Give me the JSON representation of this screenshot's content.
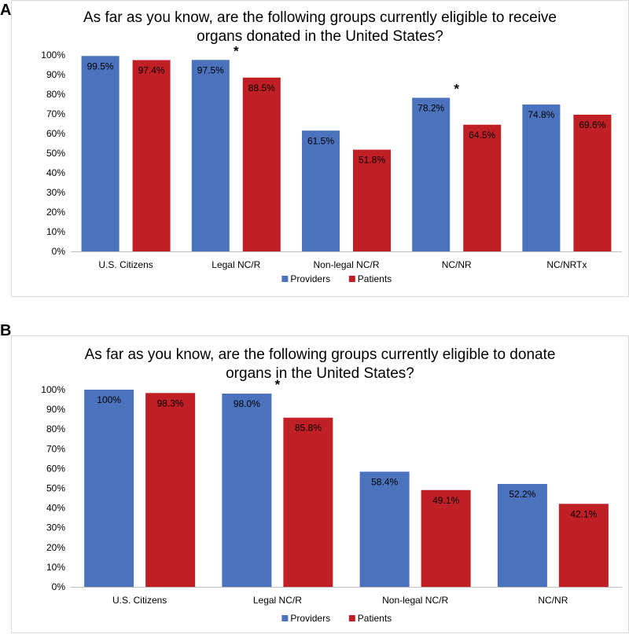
{
  "panels": {
    "a": {
      "letter": "A"
    },
    "b": {
      "letter": "B"
    }
  },
  "colors": {
    "providers": "#4a72bd",
    "patients": "#c11f26",
    "axis": "#bfbfbf"
  },
  "chart_data": [
    {
      "type": "bar",
      "title": "As far as you know, are the following groups currently eligible to receive\norgans donated in the United States?",
      "categories": [
        "U.S. Citizens",
        "Legal NC/R",
        "Non-legal NC/R",
        "NC/NR",
        "NC/NRTx"
      ],
      "series": [
        {
          "name": "Providers",
          "values": [
            99.5,
            97.5,
            61.5,
            78.2,
            74.8
          ],
          "labels": [
            "99.5%",
            "97.5%",
            "61.5%",
            "78.2%",
            "74.8%"
          ]
        },
        {
          "name": "Patients",
          "values": [
            97.4,
            88.5,
            51.8,
            64.5,
            69.6
          ],
          "labels": [
            "97.4%",
            "88.5%",
            "51.8%",
            "64.5%",
            "69.6%"
          ]
        }
      ],
      "yticks": [
        "0%",
        "10%",
        "20%",
        "30%",
        "40%",
        "50%",
        "60%",
        "70%",
        "80%",
        "90%",
        "100%"
      ],
      "ylim": [
        0,
        100
      ],
      "significance": [
        {
          "category_index": 1,
          "marker": "*"
        },
        {
          "category_index": 3,
          "marker": "*"
        }
      ],
      "legend": "bottom",
      "xlabel": "",
      "ylabel": ""
    },
    {
      "type": "bar",
      "title": "As far as you know, are the following groups currently eligible to donate\norgans in the United States?",
      "categories": [
        "U.S. Citizens",
        "Legal NC/R",
        "Non-legal NC/R",
        "NC/NR"
      ],
      "series": [
        {
          "name": "Providers",
          "values": [
            100,
            98.0,
            58.4,
            52.2
          ],
          "labels": [
            "100%",
            "98.0%",
            "58.4%",
            "52.2%"
          ]
        },
        {
          "name": "Patients",
          "values": [
            98.3,
            85.8,
            49.1,
            42.1
          ],
          "labels": [
            "98.3%",
            "85.8%",
            "49.1%",
            "42.1%"
          ]
        }
      ],
      "yticks": [
        "0%",
        "10%",
        "20%",
        "30%",
        "40%",
        "50%",
        "60%",
        "70%",
        "80%",
        "90%",
        "100%"
      ],
      "ylim": [
        0,
        100
      ],
      "significance": [
        {
          "category_index": 1,
          "marker": "*"
        }
      ],
      "legend": "bottom",
      "xlabel": "",
      "ylabel": ""
    }
  ]
}
